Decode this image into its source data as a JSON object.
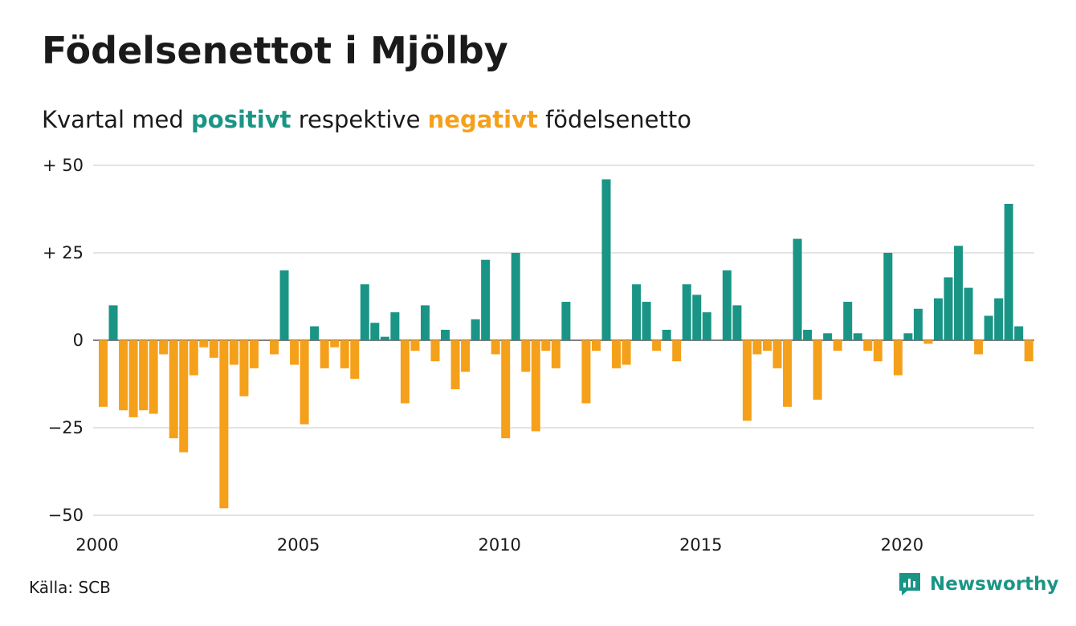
{
  "title": "Födelsenettot i Mjölby",
  "subtitle": {
    "before": "Kvartal med",
    "positive": "positivt",
    "middle": "respektive",
    "negative": "negativt",
    "after": "födelsenetto"
  },
  "source": "Källa: SCB",
  "logo": {
    "text": "Newsworthy",
    "icon": "newsworthy-chart-icon"
  },
  "colors": {
    "positive": "#1a9585",
    "negative": "#f5a01a",
    "grid": "#dcdcdc",
    "text": "#1a1a1a"
  },
  "chart_data": {
    "type": "bar",
    "x_start": {
      "year": 2000,
      "quarter": 1
    },
    "x_tick_labels": [
      "2000",
      "2005",
      "2010",
      "2015",
      "2020"
    ],
    "y_tick_values": [
      50,
      25,
      0,
      -25,
      -50
    ],
    "y_tick_labels": [
      "+ 50",
      "+ 25",
      "0",
      "−25",
      "−50"
    ],
    "ylim": [
      -50,
      50
    ],
    "grid": true,
    "values": [
      -19,
      10,
      -20,
      -22,
      -20,
      -21,
      -4,
      -28,
      -32,
      -10,
      -2,
      -5,
      -48,
      -7,
      -16,
      -8,
      0,
      -4,
      20,
      -7,
      -24,
      4,
      -8,
      -2,
      -8,
      -11,
      16,
      5,
      1,
      8,
      -18,
      -3,
      10,
      -6,
      3,
      -14,
      -9,
      6,
      23,
      -4,
      -28,
      25,
      -9,
      -26,
      -3,
      -8,
      11,
      0,
      -18,
      -3,
      46,
      -8,
      -7,
      16,
      11,
      -3,
      3,
      -6,
      16,
      13,
      8,
      0,
      20,
      10,
      -23,
      -4,
      -3,
      -8,
      -19,
      29,
      3,
      -17,
      2,
      -3,
      11,
      2,
      -3,
      -6,
      25,
      -10,
      2,
      9,
      -1,
      12,
      18,
      27,
      15,
      -4,
      7,
      12,
      39,
      4,
      -6
    ]
  }
}
